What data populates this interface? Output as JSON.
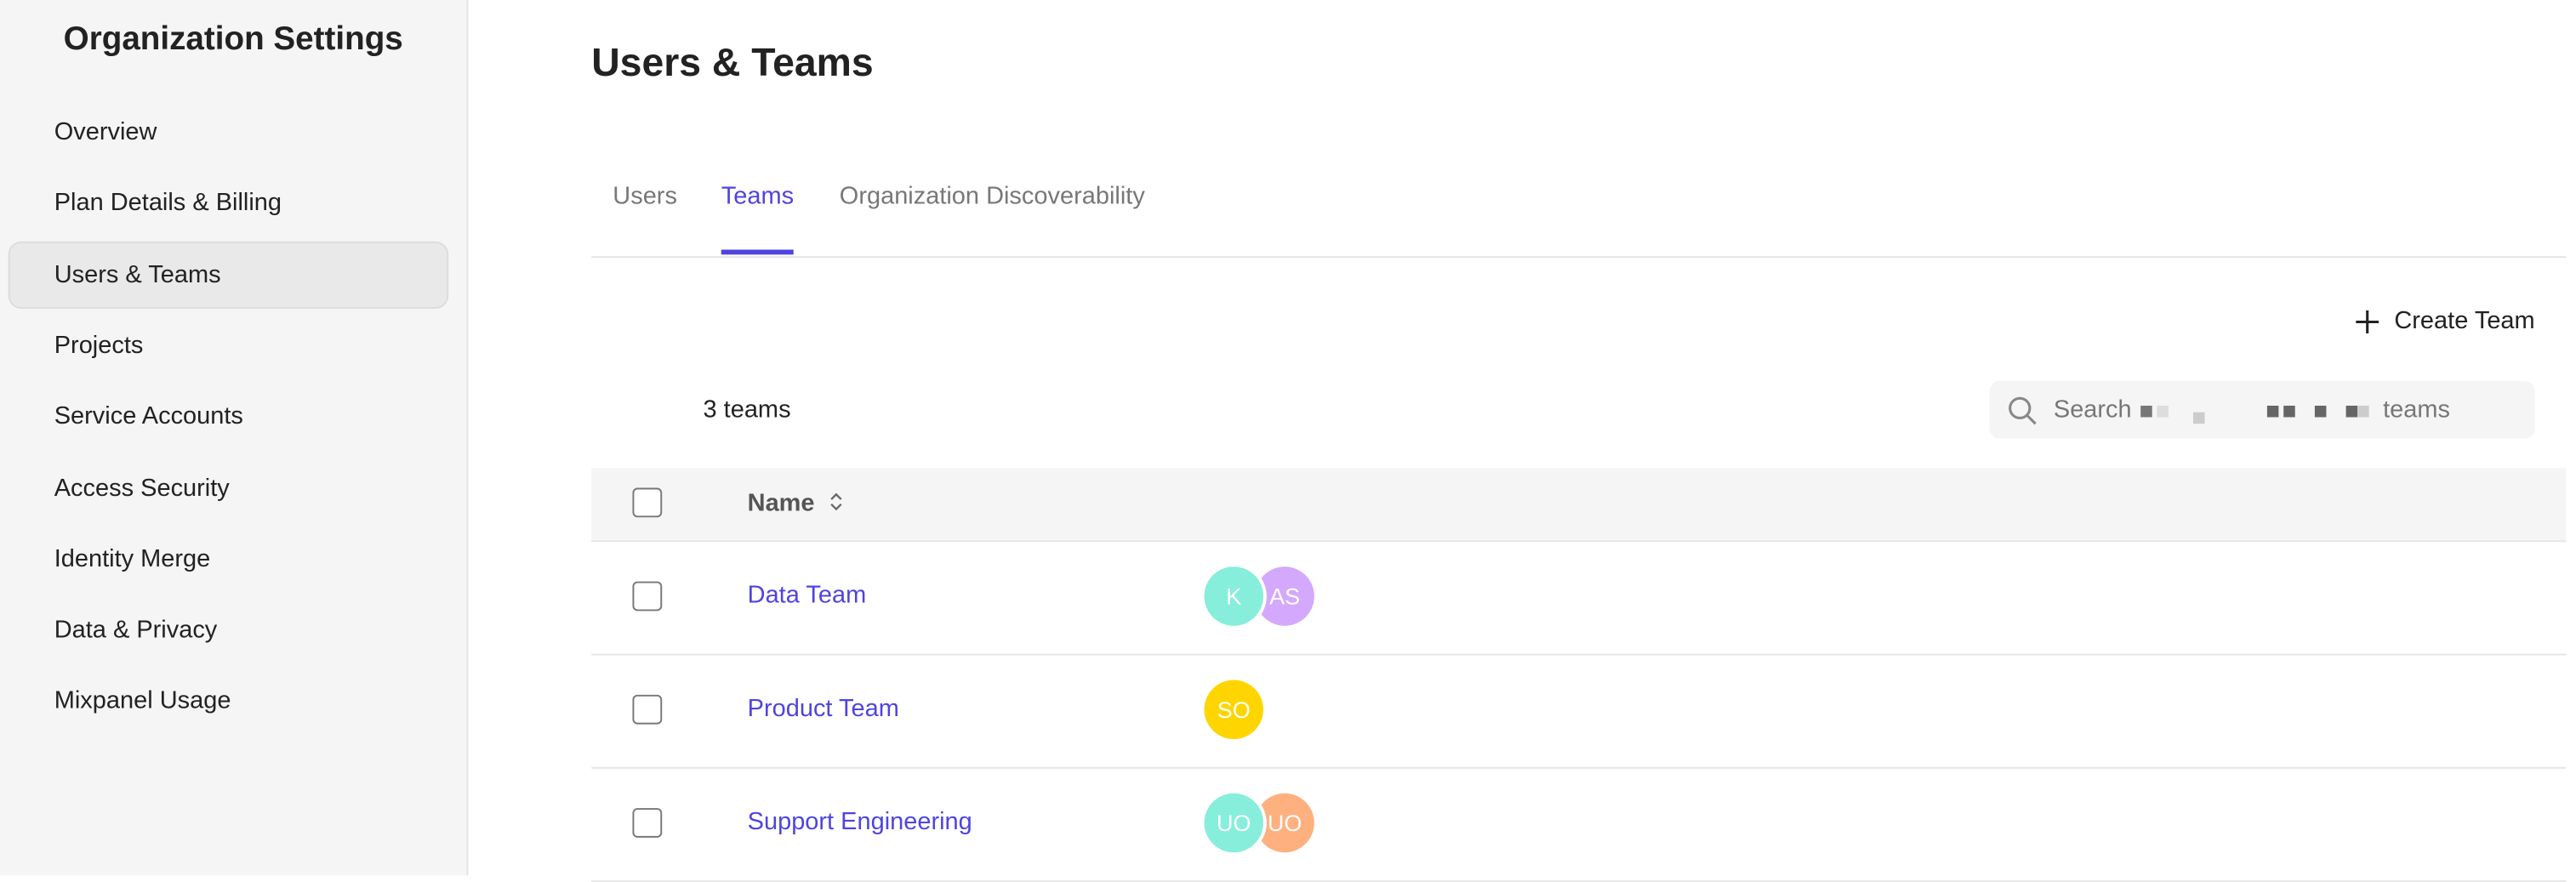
{
  "sidebar": {
    "title": "Organization Settings",
    "items": [
      {
        "label": "Overview"
      },
      {
        "label": "Plan Details & Billing"
      },
      {
        "label": "Users & Teams",
        "active": true
      },
      {
        "label": "Projects"
      },
      {
        "label": "Service Accounts"
      },
      {
        "label": "Access Security"
      },
      {
        "label": "Identity Merge"
      },
      {
        "label": "Data & Privacy"
      },
      {
        "label": "Mixpanel Usage"
      }
    ]
  },
  "main": {
    "title": "Users & Teams",
    "tabs": [
      {
        "label": "Users"
      },
      {
        "label": "Teams",
        "active": true
      },
      {
        "label": "Organization Discoverability"
      }
    ],
    "create_label": "Create Team",
    "count": "3 teams",
    "search": {
      "prefix": "Search",
      "suffix": "teams",
      "icon": "search-icon"
    },
    "table": {
      "header_name": "Name",
      "sort_icon": "sort-icon",
      "rows": [
        {
          "name": "Data Team",
          "members": [
            {
              "initials": "K",
              "color": "#86eedb"
            },
            {
              "initials": "AS",
              "color": "#d4a8fc"
            }
          ]
        },
        {
          "name": "Product Team",
          "members": [
            {
              "initials": "SO",
              "color": "#ffd500"
            }
          ]
        },
        {
          "name": "Support Engineering",
          "members": [
            {
              "initials": "UO",
              "color": "#86eedb"
            },
            {
              "initials": "UO",
              "color": "#ffb07f"
            }
          ]
        }
      ]
    }
  },
  "colors": {
    "accent": "#4f44e0",
    "sidebar_bg": "#f5f5f5"
  }
}
